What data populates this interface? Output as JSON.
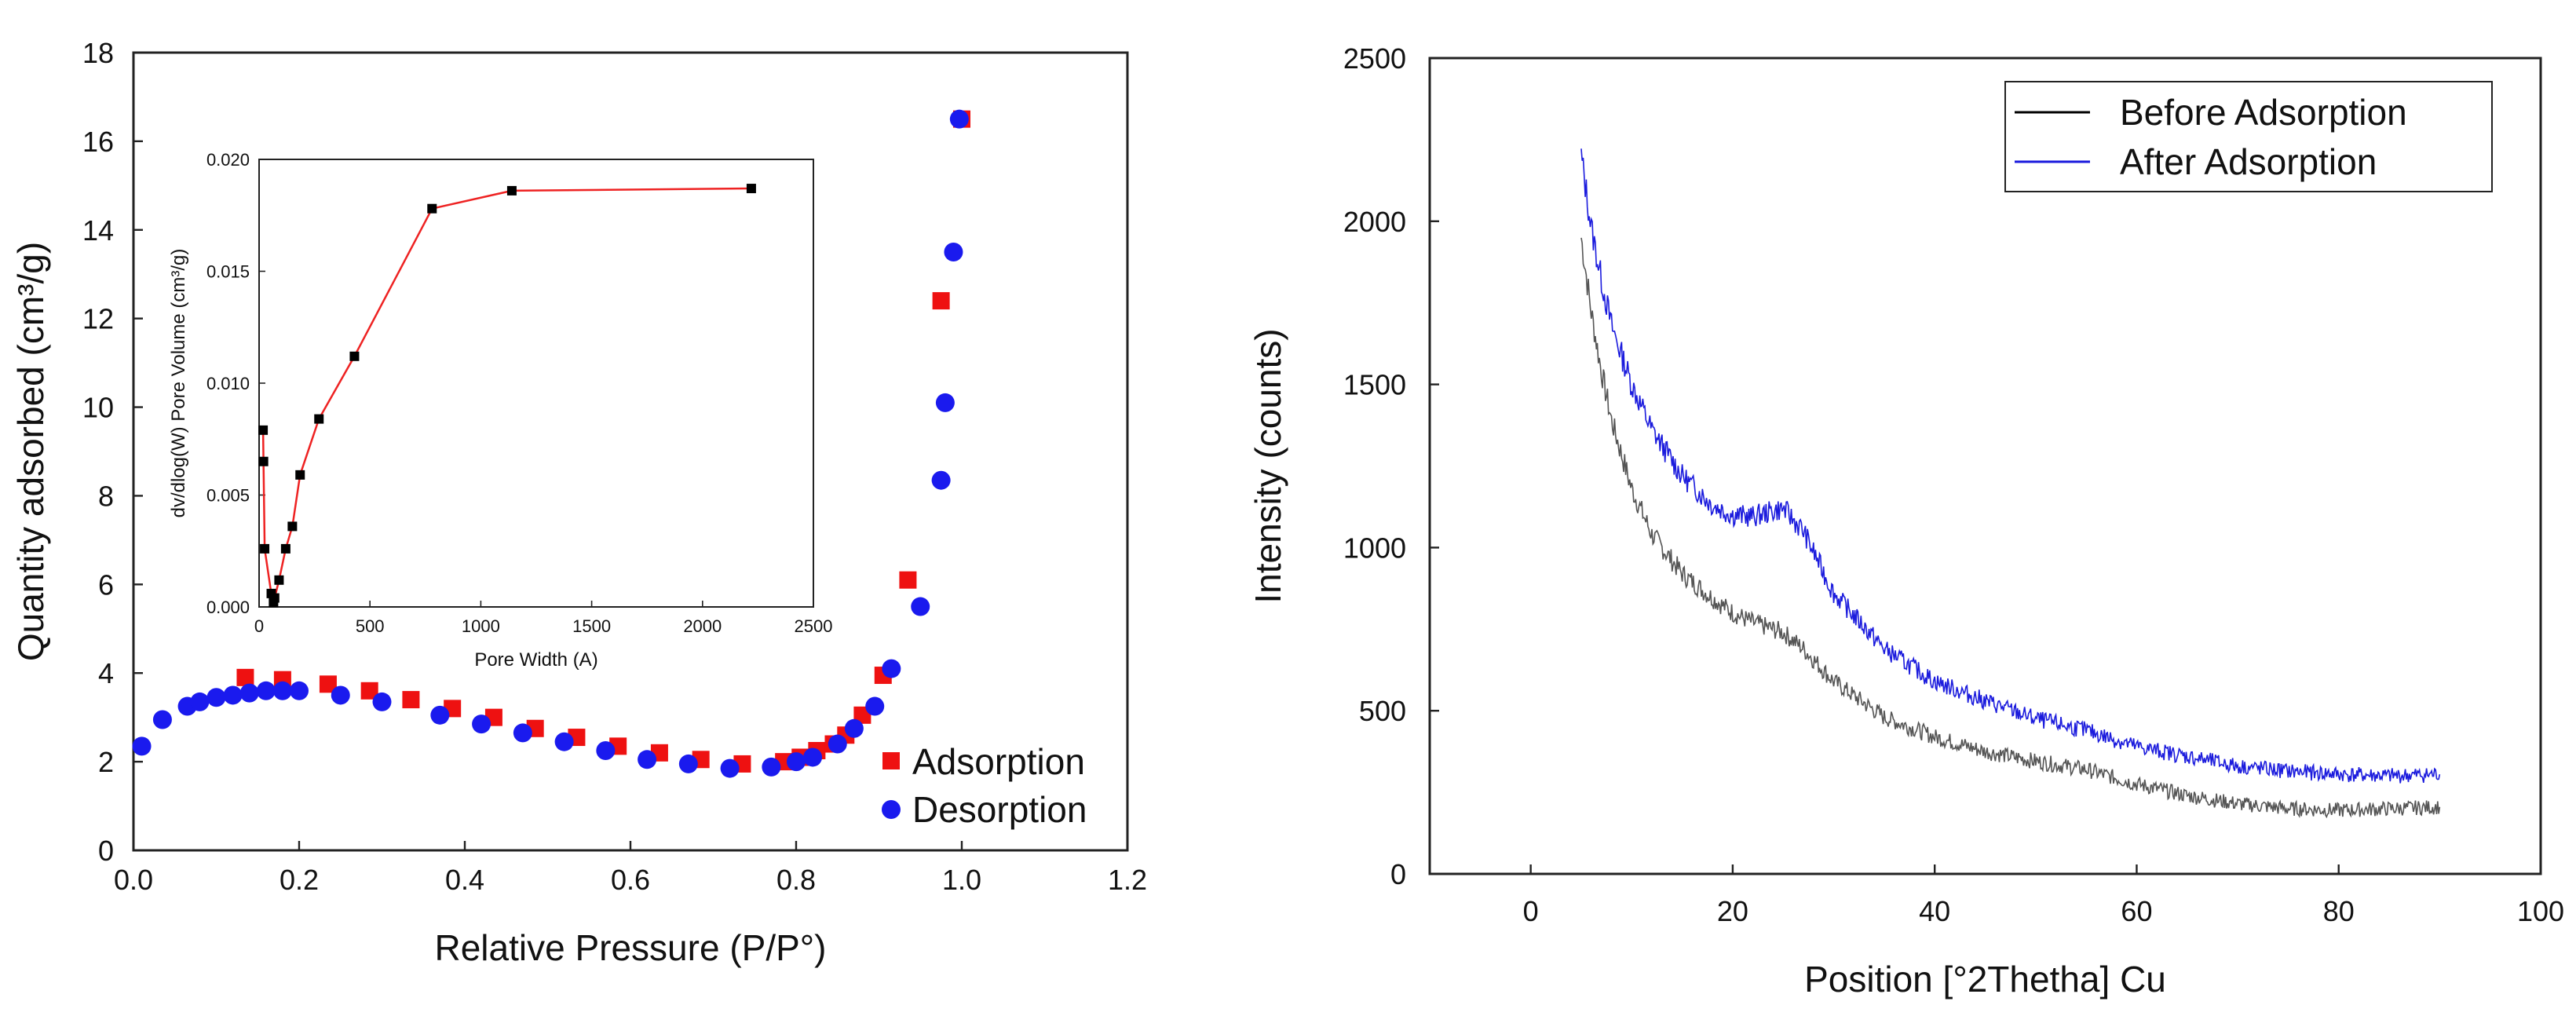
{
  "chart_data": [
    {
      "type": "scatter",
      "xlabel": "Relative Pressure (P/P°)",
      "ylabel": "Quantity adsorbed (cm³/g)",
      "xlim": [
        0,
        1.2
      ],
      "ylim": [
        0,
        18
      ],
      "xticks": [
        "0.0",
        "0.2",
        "0.4",
        "0.6",
        "0.8",
        "1.0",
        "1.2"
      ],
      "yticks": [
        "0",
        "2",
        "4",
        "6",
        "8",
        "10",
        "12",
        "14",
        "16",
        "18"
      ],
      "legend_position": "bottom-right",
      "series": [
        {
          "name": "Adsorption",
          "marker": "square",
          "color": "#ee1111",
          "points": [
            [
              0.135,
              3.9
            ],
            [
              0.18,
              3.85
            ],
            [
              0.235,
              3.75
            ],
            [
              0.285,
              3.6
            ],
            [
              0.335,
              3.4
            ],
            [
              0.385,
              3.2
            ],
            [
              0.435,
              3.0
            ],
            [
              0.485,
              2.75
            ],
            [
              0.535,
              2.55
            ],
            [
              0.585,
              2.35
            ],
            [
              0.635,
              2.2
            ],
            [
              0.685,
              2.05
            ],
            [
              0.735,
              1.95
            ],
            [
              0.785,
              2.0
            ],
            [
              0.805,
              2.1
            ],
            [
              0.825,
              2.25
            ],
            [
              0.845,
              2.4
            ],
            [
              0.86,
              2.6
            ],
            [
              0.88,
              3.05
            ],
            [
              0.905,
              3.95
            ],
            [
              0.935,
              6.1
            ],
            [
              0.975,
              12.4
            ],
            [
              1.0,
              16.5
            ]
          ]
        },
        {
          "name": "Desorption",
          "marker": "circle",
          "color": "#1a1aee",
          "points": [
            [
              0.01,
              2.35
            ],
            [
              0.035,
              2.95
            ],
            [
              0.065,
              3.25
            ],
            [
              0.08,
              3.35
            ],
            [
              0.1,
              3.45
            ],
            [
              0.12,
              3.5
            ],
            [
              0.14,
              3.55
            ],
            [
              0.16,
              3.6
            ],
            [
              0.18,
              3.6
            ],
            [
              0.2,
              3.6
            ],
            [
              0.25,
              3.5
            ],
            [
              0.3,
              3.35
            ],
            [
              0.37,
              3.05
            ],
            [
              0.42,
              2.85
            ],
            [
              0.47,
              2.65
            ],
            [
              0.52,
              2.45
            ],
            [
              0.57,
              2.25
            ],
            [
              0.62,
              2.05
            ],
            [
              0.67,
              1.95
            ],
            [
              0.72,
              1.85
            ],
            [
              0.77,
              1.88
            ],
            [
              0.8,
              2.0
            ],
            [
              0.82,
              2.1
            ],
            [
              0.85,
              2.4
            ],
            [
              0.87,
              2.75
            ],
            [
              0.895,
              3.25
            ],
            [
              0.915,
              4.1
            ],
            [
              0.95,
              5.5
            ],
            [
              0.975,
              8.35
            ],
            [
              0.98,
              10.1
            ],
            [
              0.99,
              13.5
            ],
            [
              0.997,
              16.5
            ]
          ]
        }
      ]
    },
    {
      "type": "line",
      "xlabel": "Pore Width (A)",
      "ylabel": "dv/dlog(W) Pore Volume (cm³/g)",
      "xlim": [
        0,
        2500
      ],
      "ylim": [
        0,
        0.02
      ],
      "xticks": [
        "0",
        "500",
        "1000",
        "1500",
        "2000",
        "2500"
      ],
      "yticks": [
        "0.000",
        "0.005",
        "0.010",
        "0.015",
        "0.020"
      ],
      "series": [
        {
          "color": "#ee2222",
          "marker_color": "#000000",
          "points": [
            [
              18,
              0.0079
            ],
            [
              20,
              0.0065
            ],
            [
              25,
              0.0026
            ],
            [
              55,
              0.0006
            ],
            [
              65,
              0.0002
            ],
            [
              70,
              0.0004
            ],
            [
              90,
              0.0012
            ],
            [
              120,
              0.0026
            ],
            [
              150,
              0.0036
            ],
            [
              185,
              0.0059
            ],
            [
              270,
              0.0084
            ],
            [
              430,
              0.0112
            ],
            [
              780,
              0.0178
            ],
            [
              1140,
              0.0186
            ],
            [
              2220,
              0.0187
            ]
          ]
        }
      ]
    },
    {
      "type": "line",
      "xlabel": "Position [°2Thetha] Cu",
      "ylabel": "Intensity (counts)",
      "xlim": [
        -10,
        100
      ],
      "ylim": [
        0,
        2500
      ],
      "xticks": [
        "0",
        "20",
        "40",
        "60",
        "80",
        "100"
      ],
      "yticks": [
        "0",
        "500",
        "1000",
        "1500",
        "2000",
        "2500"
      ],
      "legend_position": "top-right",
      "series": [
        {
          "name": "Before Adsorption",
          "color": "#555555",
          "legend_color": "#000000",
          "points": [
            [
              5,
              1950
            ],
            [
              6,
              1720
            ],
            [
              7,
              1540
            ],
            [
              8,
              1390
            ],
            [
              10,
              1180
            ],
            [
              12,
              1040
            ],
            [
              15,
              920
            ],
            [
              18,
              845
            ],
            [
              20,
              800
            ],
            [
              22,
              770
            ],
            [
              25,
              740
            ],
            [
              27,
              690
            ],
            [
              30,
              590
            ],
            [
              35,
              480
            ],
            [
              40,
              420
            ],
            [
              45,
              375
            ],
            [
              50,
              345
            ],
            [
              55,
              320
            ],
            [
              60,
              275
            ],
            [
              65,
              240
            ],
            [
              70,
              215
            ],
            [
              75,
              200
            ],
            [
              80,
              195
            ],
            [
              85,
              200
            ],
            [
              90,
              205
            ]
          ]
        },
        {
          "name": "After Adsorption",
          "color": "#1b1bdd",
          "legend_color": "#1b1bdd",
          "points": [
            [
              5,
              2200
            ],
            [
              6,
              1980
            ],
            [
              7,
              1820
            ],
            [
              8,
              1680
            ],
            [
              10,
              1500
            ],
            [
              12,
              1360
            ],
            [
              15,
              1220
            ],
            [
              18,
              1130
            ],
            [
              20,
              1100
            ],
            [
              22,
              1095
            ],
            [
              25,
              1120
            ],
            [
              27,
              1050
            ],
            [
              30,
              860
            ],
            [
              35,
              690
            ],
            [
              40,
              590
            ],
            [
              45,
              530
            ],
            [
              50,
              475
            ],
            [
              55,
              440
            ],
            [
              60,
              390
            ],
            [
              65,
              360
            ],
            [
              70,
              330
            ],
            [
              75,
              315
            ],
            [
              80,
              305
            ],
            [
              85,
              300
            ],
            [
              90,
              305
            ]
          ]
        }
      ]
    }
  ]
}
